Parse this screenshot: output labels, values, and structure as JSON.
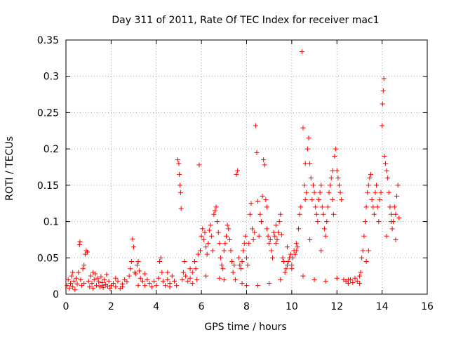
{
  "chart_data": {
    "type": "scatter",
    "title": "Day 311 of 2011, Rate Of TEC Index for receiver mac1",
    "xlabel": "GPS time / hours",
    "ylabel": "ROTI / TECUs",
    "xlim": [
      0,
      16
    ],
    "ylim": [
      0,
      0.35
    ],
    "xticks": [
      0,
      2,
      4,
      6,
      8,
      10,
      12,
      14,
      16
    ],
    "yticks": [
      0,
      0.05,
      0.1,
      0.15,
      0.2,
      0.25,
      0.3,
      0.35
    ],
    "xtick_labels": [
      "0",
      "2",
      "4",
      "6",
      "8",
      "10",
      "12",
      "14",
      "16"
    ],
    "ytick_labels": [
      "0",
      "0.05",
      "0.1",
      "0.15",
      "0.2",
      "0.25",
      "0.3",
      "0.35"
    ],
    "grid": true,
    "marker": "plus",
    "color": "#ff0000",
    "series": [
      {
        "name": "ROTI",
        "points": [
          [
            0.05,
            0.012
          ],
          [
            0.1,
            0.02
          ],
          [
            0.15,
            0.008
          ],
          [
            0.2,
            0.015
          ],
          [
            0.25,
            0.025
          ],
          [
            0.3,
            0.01
          ],
          [
            0.35,
            0.018
          ],
          [
            0.4,
            0.006
          ],
          [
            0.45,
            0.022
          ],
          [
            0.5,
            0.014
          ],
          [
            0.55,
            0.03
          ],
          [
            0.6,
            0.068
          ],
          [
            0.62,
            0.072
          ],
          [
            0.65,
            0.02
          ],
          [
            0.7,
            0.012
          ],
          [
            0.75,
            0.035
          ],
          [
            0.8,
            0.04
          ],
          [
            0.85,
            0.055
          ],
          [
            0.9,
            0.06
          ],
          [
            0.95,
            0.058
          ],
          [
            1.0,
            0.018
          ],
          [
            1.05,
            0.01
          ],
          [
            1.1,
            0.025
          ],
          [
            1.15,
            0.015
          ],
          [
            1.2,
            0.008
          ],
          [
            1.25,
            0.02
          ],
          [
            1.3,
            0.028
          ],
          [
            1.35,
            0.012
          ],
          [
            1.4,
            0.022
          ],
          [
            1.45,
            0.017
          ],
          [
            1.5,
            0.01
          ],
          [
            1.55,
            0.024
          ],
          [
            1.6,
            0.016
          ],
          [
            1.65,
            0.009
          ],
          [
            1.7,
            0.02
          ],
          [
            1.75,
            0.013
          ],
          [
            1.8,
            0.027
          ],
          [
            1.85,
            0.011
          ],
          [
            1.9,
            0.018
          ],
          [
            1.95,
            0.008
          ],
          [
            2.0,
            0.012
          ],
          [
            2.1,
            0.015
          ],
          [
            2.2,
            0.01
          ],
          [
            2.3,
            0.018
          ],
          [
            2.4,
            0.008
          ],
          [
            2.5,
            0.014
          ],
          [
            2.6,
            0.02
          ],
          [
            2.7,
            0.017
          ],
          [
            2.8,
            0.025
          ],
          [
            2.85,
            0.035
          ],
          [
            2.9,
            0.045
          ],
          [
            2.95,
            0.076
          ],
          [
            3.0,
            0.065
          ],
          [
            3.05,
            0.03
          ],
          [
            3.1,
            0.028
          ],
          [
            3.15,
            0.04
          ],
          [
            3.2,
            0.045
          ],
          [
            3.25,
            0.032
          ],
          [
            3.3,
            0.022
          ],
          [
            3.4,
            0.018
          ],
          [
            3.5,
            0.012
          ],
          [
            3.6,
            0.02
          ],
          [
            3.7,
            0.015
          ],
          [
            3.8,
            0.01
          ],
          [
            3.9,
            0.018
          ],
          [
            4.0,
            0.012
          ],
          [
            4.1,
            0.022
          ],
          [
            4.15,
            0.045
          ],
          [
            4.2,
            0.05
          ],
          [
            4.25,
            0.03
          ],
          [
            4.3,
            0.018
          ],
          [
            4.4,
            0.012
          ],
          [
            4.5,
            0.02
          ],
          [
            4.6,
            0.015
          ],
          [
            4.7,
            0.025
          ],
          [
            4.8,
            0.018
          ],
          [
            4.9,
            0.012
          ],
          [
            4.95,
            0.185
          ],
          [
            5.0,
            0.18
          ],
          [
            5.02,
            0.165
          ],
          [
            5.05,
            0.15
          ],
          [
            5.08,
            0.14
          ],
          [
            5.1,
            0.118
          ],
          [
            5.15,
            0.02
          ],
          [
            5.2,
            0.03
          ],
          [
            5.25,
            0.045
          ],
          [
            5.3,
            0.025
          ],
          [
            5.4,
            0.018
          ],
          [
            5.5,
            0.022
          ],
          [
            5.6,
            0.03
          ],
          [
            5.7,
            0.045
          ],
          [
            5.75,
            0.035
          ],
          [
            5.8,
            0.02
          ],
          [
            5.85,
            0.055
          ],
          [
            5.9,
            0.178
          ],
          [
            5.95,
            0.06
          ],
          [
            6.0,
            0.08
          ],
          [
            6.05,
            0.09
          ],
          [
            6.1,
            0.075
          ],
          [
            6.15,
            0.085
          ],
          [
            6.2,
            0.065
          ],
          [
            6.25,
            0.055
          ],
          [
            6.3,
            0.07
          ],
          [
            6.35,
            0.088
          ],
          [
            6.4,
            0.095
          ],
          [
            6.45,
            0.08
          ],
          [
            6.5,
            0.06
          ],
          [
            6.55,
            0.11
          ],
          [
            6.6,
            0.115
          ],
          [
            6.65,
            0.12
          ],
          [
            6.7,
            0.1
          ],
          [
            6.75,
            0.085
          ],
          [
            6.8,
            0.07
          ],
          [
            6.85,
            0.05
          ],
          [
            6.9,
            0.04
          ],
          [
            6.95,
            0.035
          ],
          [
            7.0,
            0.06
          ],
          [
            7.05,
            0.07
          ],
          [
            7.1,
            0.08
          ],
          [
            7.15,
            0.095
          ],
          [
            7.2,
            0.09
          ],
          [
            7.25,
            0.075
          ],
          [
            7.3,
            0.06
          ],
          [
            7.35,
            0.045
          ],
          [
            7.4,
            0.03
          ],
          [
            7.45,
            0.04
          ],
          [
            7.5,
            0.02
          ],
          [
            7.55,
            0.165
          ],
          [
            7.6,
            0.17
          ],
          [
            7.65,
            0.05
          ],
          [
            7.7,
            0.04
          ],
          [
            7.75,
            0.035
          ],
          [
            7.8,
            0.045
          ],
          [
            7.85,
            0.06
          ],
          [
            7.9,
            0.07
          ],
          [
            7.95,
            0.08
          ],
          [
            8.0,
            0.05
          ],
          [
            8.05,
            0.04
          ],
          [
            8.1,
            0.07
          ],
          [
            8.15,
            0.11
          ],
          [
            8.2,
            0.125
          ],
          [
            8.25,
            0.09
          ],
          [
            8.3,
            0.075
          ],
          [
            8.35,
            0.085
          ],
          [
            8.4,
            0.232
          ],
          [
            8.45,
            0.195
          ],
          [
            8.5,
            0.128
          ],
          [
            8.55,
            0.08
          ],
          [
            8.6,
            0.11
          ],
          [
            8.65,
            0.1
          ],
          [
            8.7,
            0.135
          ],
          [
            8.75,
            0.185
          ],
          [
            8.8,
            0.178
          ],
          [
            8.85,
            0.13
          ],
          [
            8.9,
            0.09
          ],
          [
            8.95,
            0.08
          ],
          [
            9.0,
            0.07
          ],
          [
            9.05,
            0.075
          ],
          [
            9.1,
            0.06
          ],
          [
            9.15,
            0.05
          ],
          [
            9.2,
            0.085
          ],
          [
            9.25,
            0.08
          ],
          [
            9.3,
            0.07
          ],
          [
            9.35,
            0.075
          ],
          [
            9.4,
            0.085
          ],
          [
            9.45,
            0.1
          ],
          [
            9.5,
            0.11
          ],
          [
            9.55,
            0.082
          ],
          [
            9.6,
            0.05
          ],
          [
            9.65,
            0.045
          ],
          [
            9.7,
            0.03
          ],
          [
            9.75,
            0.035
          ],
          [
            9.8,
            0.04
          ],
          [
            9.85,
            0.045
          ],
          [
            9.9,
            0.05
          ],
          [
            9.95,
            0.055
          ],
          [
            10.0,
            0.04
          ],
          [
            10.05,
            0.05
          ],
          [
            10.1,
            0.06
          ],
          [
            10.15,
            0.055
          ],
          [
            10.2,
            0.07
          ],
          [
            10.25,
            0.065
          ],
          [
            10.3,
            0.09
          ],
          [
            10.35,
            0.11
          ],
          [
            10.4,
            0.12
          ],
          [
            10.45,
            0.334
          ],
          [
            10.5,
            0.229
          ],
          [
            10.55,
            0.15
          ],
          [
            10.6,
            0.13
          ],
          [
            10.65,
            0.14
          ],
          [
            10.7,
            0.2
          ],
          [
            10.75,
            0.215
          ],
          [
            10.8,
            0.18
          ],
          [
            10.85,
            0.16
          ],
          [
            10.9,
            0.13
          ],
          [
            10.95,
            0.15
          ],
          [
            11.0,
            0.14
          ],
          [
            11.05,
            0.12
          ],
          [
            11.1,
            0.11
          ],
          [
            11.15,
            0.1
          ],
          [
            11.2,
            0.13
          ],
          [
            11.25,
            0.14
          ],
          [
            11.3,
            0.15
          ],
          [
            11.35,
            0.12
          ],
          [
            11.4,
            0.11
          ],
          [
            11.45,
            0.09
          ],
          [
            11.5,
            0.08
          ],
          [
            11.55,
            0.1
          ],
          [
            11.6,
            0.12
          ],
          [
            11.65,
            0.14
          ],
          [
            11.7,
            0.15
          ],
          [
            11.75,
            0.16
          ],
          [
            11.8,
            0.13
          ],
          [
            11.85,
            0.11
          ],
          [
            11.9,
            0.19
          ],
          [
            11.95,
            0.2
          ],
          [
            12.0,
            0.17
          ],
          [
            12.05,
            0.16
          ],
          [
            12.1,
            0.15
          ],
          [
            12.15,
            0.14
          ],
          [
            12.2,
            0.13
          ],
          [
            12.3,
            0.02
          ],
          [
            12.4,
            0.018
          ],
          [
            12.5,
            0.015
          ],
          [
            12.6,
            0.02
          ],
          [
            12.7,
            0.016
          ],
          [
            12.8,
            0.022
          ],
          [
            12.9,
            0.018
          ],
          [
            13.0,
            0.025
          ],
          [
            13.05,
            0.03
          ],
          [
            13.1,
            0.05
          ],
          [
            13.15,
            0.06
          ],
          [
            13.2,
            0.08
          ],
          [
            13.25,
            0.1
          ],
          [
            13.3,
            0.12
          ],
          [
            13.35,
            0.14
          ],
          [
            13.4,
            0.15
          ],
          [
            13.45,
            0.16
          ],
          [
            13.5,
            0.165
          ],
          [
            13.55,
            0.13
          ],
          [
            13.6,
            0.12
          ],
          [
            13.65,
            0.11
          ],
          [
            13.7,
            0.14
          ],
          [
            13.75,
            0.15
          ],
          [
            13.8,
            0.12
          ],
          [
            13.85,
            0.1
          ],
          [
            13.9,
            0.13
          ],
          [
            13.95,
            0.14
          ],
          [
            14.0,
            0.232
          ],
          [
            14.02,
            0.262
          ],
          [
            14.05,
            0.28
          ],
          [
            14.08,
            0.297
          ],
          [
            14.1,
            0.19
          ],
          [
            14.15,
            0.18
          ],
          [
            14.2,
            0.17
          ],
          [
            14.25,
            0.16
          ],
          [
            14.3,
            0.14
          ],
          [
            14.35,
            0.12
          ],
          [
            14.4,
            0.1
          ],
          [
            14.45,
            0.09
          ],
          [
            14.5,
            0.1
          ],
          [
            14.55,
            0.12
          ],
          [
            14.6,
            0.11
          ],
          [
            14.65,
            0.135
          ],
          [
            14.7,
            0.15
          ],
          [
            14.75,
            0.105
          ],
          [
            0.3,
            0.03
          ],
          [
            1.2,
            0.03
          ],
          [
            2.2,
            0.022
          ],
          [
            3.5,
            0.028
          ],
          [
            4.5,
            0.03
          ],
          [
            5.5,
            0.035
          ],
          [
            6.2,
            0.025
          ],
          [
            7.0,
            0.02
          ],
          [
            7.8,
            0.015
          ],
          [
            8.5,
            0.012
          ],
          [
            9.0,
            0.015
          ],
          [
            10.0,
            0.035
          ],
          [
            10.5,
            0.025
          ],
          [
            11.0,
            0.02
          ],
          [
            11.5,
            0.018
          ],
          [
            12.0,
            0.022
          ],
          [
            12.5,
            0.02
          ],
          [
            13.0,
            0.015
          ],
          [
            9.5,
            0.02
          ],
          [
            8.0,
            0.012
          ],
          [
            10.8,
            0.075
          ],
          [
            11.3,
            0.06
          ],
          [
            9.8,
            0.065
          ],
          [
            10.2,
            0.06
          ],
          [
            6.8,
            0.022
          ],
          [
            5.6,
            0.015
          ],
          [
            4.6,
            0.01
          ],
          [
            3.2,
            0.012
          ],
          [
            2.5,
            0.01
          ],
          [
            1.6,
            0.012
          ],
          [
            0.8,
            0.015
          ],
          [
            13.3,
            0.045
          ],
          [
            13.4,
            0.06
          ],
          [
            14.2,
            0.08
          ],
          [
            14.4,
            0.11
          ],
          [
            14.6,
            0.075
          ],
          [
            8.9,
            0.12
          ],
          [
            9.3,
            0.095
          ],
          [
            10.6,
            0.18
          ],
          [
            11.8,
            0.17
          ]
        ]
      }
    ]
  }
}
